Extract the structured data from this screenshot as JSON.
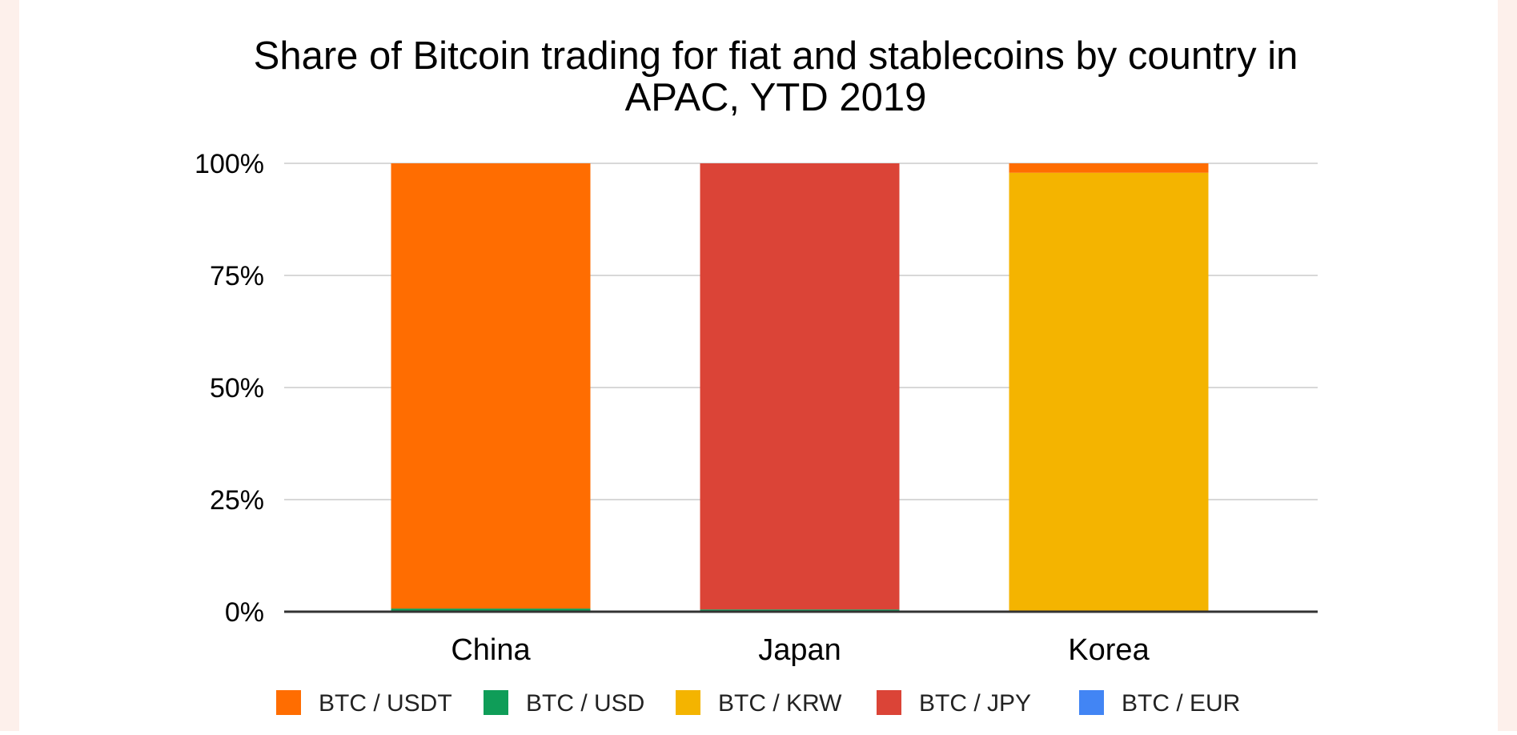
{
  "chart_data": {
    "type": "bar",
    "stacked": true,
    "percent_stacked": true,
    "title_line1": "Share of Bitcoin trading for fiat and stablecoins by country in",
    "title_line2": "APAC, YTD 2019",
    "categories": [
      "China",
      "Japan",
      "Korea"
    ],
    "series": [
      {
        "name": "BTC / USDT",
        "color": "#ff6d01",
        "values": [
          99.3,
          0,
          2.1
        ]
      },
      {
        "name": "BTC / USD",
        "color": "#0f9d58",
        "values": [
          0.7,
          0.5,
          0
        ]
      },
      {
        "name": "BTC / KRW",
        "color": "#f4b400",
        "values": [
          0,
          0,
          97.9
        ]
      },
      {
        "name": "BTC / JPY",
        "color": "#db4437",
        "values": [
          0,
          99.5,
          0
        ]
      },
      {
        "name": "BTC / EUR",
        "color": "#4285f4",
        "values": [
          0,
          0,
          0
        ]
      }
    ],
    "stack_order": [
      "BTC / USD",
      "BTC / KRW",
      "BTC / JPY",
      "BTC / USDT",
      "BTC / EUR"
    ],
    "y_ticks": [
      "0%",
      "25%",
      "50%",
      "75%",
      "100%"
    ],
    "ylim": [
      0,
      100
    ],
    "grid": true,
    "legend_position": "bottom"
  }
}
